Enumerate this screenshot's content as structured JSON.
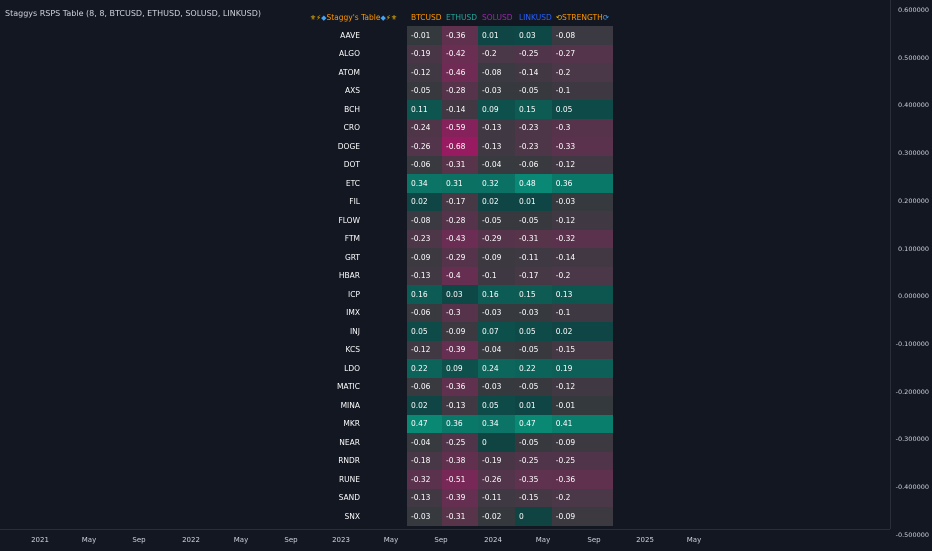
{
  "indicator": {
    "title": "Staggys RSPS Table (8, 8, BTCUSD, ETHUSD, SOLUSD, LINKUSD)"
  },
  "table": {
    "title": "Staggy's Table",
    "title_icons": [
      "fleur-de-lis-icon",
      "lightning-icon",
      "gem-icon"
    ],
    "headers": [
      {
        "label": "BTCUSD",
        "color": "#ff9800"
      },
      {
        "label": "ETHUSD",
        "color": "#26a69a"
      },
      {
        "label": "SOLUSD",
        "color": "#9c27b0"
      },
      {
        "label": "LINKUSD",
        "color": "#2962ff"
      },
      {
        "label": "STRENGTH",
        "color": "#ff9800"
      }
    ],
    "strength_icon": "cycle-arrows-icon",
    "rows": [
      {
        "asset": "AAVE",
        "values": [
          "-0.01",
          "-0.36",
          "0.01",
          "0.03",
          "-0.08"
        ]
      },
      {
        "asset": "ALGO",
        "values": [
          "-0.19",
          "-0.42",
          "-0.2",
          "-0.25",
          "-0.27"
        ]
      },
      {
        "asset": "ATOM",
        "values": [
          "-0.12",
          "-0.46",
          "-0.08",
          "-0.14",
          "-0.2"
        ]
      },
      {
        "asset": "AXS",
        "values": [
          "-0.05",
          "-0.28",
          "-0.03",
          "-0.05",
          "-0.1"
        ]
      },
      {
        "asset": "BCH",
        "values": [
          "0.11",
          "-0.14",
          "0.09",
          "0.15",
          "0.05"
        ]
      },
      {
        "asset": "CRO",
        "values": [
          "-0.24",
          "-0.59",
          "-0.13",
          "-0.23",
          "-0.3"
        ]
      },
      {
        "asset": "DOGE",
        "values": [
          "-0.26",
          "-0.68",
          "-0.13",
          "-0.23",
          "-0.33"
        ]
      },
      {
        "asset": "DOT",
        "values": [
          "-0.06",
          "-0.31",
          "-0.04",
          "-0.06",
          "-0.12"
        ]
      },
      {
        "asset": "ETC",
        "values": [
          "0.34",
          "0.31",
          "0.32",
          "0.48",
          "0.36"
        ]
      },
      {
        "asset": "FIL",
        "values": [
          "0.02",
          "-0.17",
          "0.02",
          "0.01",
          "-0.03"
        ]
      },
      {
        "asset": "FLOW",
        "values": [
          "-0.08",
          "-0.28",
          "-0.05",
          "-0.05",
          "-0.12"
        ]
      },
      {
        "asset": "FTM",
        "values": [
          "-0.23",
          "-0.43",
          "-0.29",
          "-0.31",
          "-0.32"
        ]
      },
      {
        "asset": "GRT",
        "values": [
          "-0.09",
          "-0.29",
          "-0.09",
          "-0.11",
          "-0.14"
        ]
      },
      {
        "asset": "HBAR",
        "values": [
          "-0.13",
          "-0.4",
          "-0.1",
          "-0.17",
          "-0.2"
        ]
      },
      {
        "asset": "ICP",
        "values": [
          "0.16",
          "0.03",
          "0.16",
          "0.15",
          "0.13"
        ]
      },
      {
        "asset": "IMX",
        "values": [
          "-0.06",
          "-0.3",
          "-0.03",
          "-0.03",
          "-0.1"
        ]
      },
      {
        "asset": "INJ",
        "values": [
          "0.05",
          "-0.09",
          "0.07",
          "0.05",
          "0.02"
        ]
      },
      {
        "asset": "KCS",
        "values": [
          "-0.12",
          "-0.39",
          "-0.04",
          "-0.05",
          "-0.15"
        ]
      },
      {
        "asset": "LDO",
        "values": [
          "0.22",
          "0.09",
          "0.24",
          "0.22",
          "0.19"
        ]
      },
      {
        "asset": "MATIC",
        "values": [
          "-0.06",
          "-0.36",
          "-0.03",
          "-0.05",
          "-0.12"
        ]
      },
      {
        "asset": "MINA",
        "values": [
          "0.02",
          "-0.13",
          "0.05",
          "0.01",
          "-0.01"
        ]
      },
      {
        "asset": "MKR",
        "values": [
          "0.47",
          "0.36",
          "0.34",
          "0.47",
          "0.41"
        ]
      },
      {
        "asset": "NEAR",
        "values": [
          "-0.04",
          "-0.25",
          "0",
          "-0.05",
          "-0.09"
        ]
      },
      {
        "asset": "RNDR",
        "values": [
          "-0.18",
          "-0.38",
          "-0.19",
          "-0.25",
          "-0.25"
        ]
      },
      {
        "asset": "RUNE",
        "values": [
          "-0.32",
          "-0.51",
          "-0.26",
          "-0.35",
          "-0.36"
        ]
      },
      {
        "asset": "SAND",
        "values": [
          "-0.13",
          "-0.39",
          "-0.11",
          "-0.15",
          "-0.2"
        ]
      },
      {
        "asset": "SNX",
        "values": [
          "-0.03",
          "-0.31",
          "-0.02",
          "0",
          "-0.09"
        ]
      }
    ]
  },
  "price_axis": [
    {
      "label": "0.600000",
      "value": 0.6
    },
    {
      "label": "0.500000",
      "value": 0.5
    },
    {
      "label": "0.400000",
      "value": 0.4
    },
    {
      "label": "0.300000",
      "value": 0.3
    },
    {
      "label": "0.200000",
      "value": 0.2
    },
    {
      "label": "0.100000",
      "value": 0.1
    },
    {
      "label": "0.000000",
      "value": 0.0
    },
    {
      "label": "-0.100000",
      "value": -0.1
    },
    {
      "label": "-0.200000",
      "value": -0.2
    },
    {
      "label": "-0.300000",
      "value": -0.3
    },
    {
      "label": "-0.400000",
      "value": -0.4
    },
    {
      "label": "-0.500000",
      "value": -0.5
    }
  ],
  "time_axis": [
    "2021",
    "May",
    "Sep",
    "2022",
    "May",
    "Sep",
    "2023",
    "May",
    "Sep",
    "2024",
    "May",
    "Sep",
    "2025",
    "May"
  ],
  "colors": {
    "background": "#131722",
    "positive": "#089981",
    "negative": "#b2275c",
    "neutral": "#787b86"
  }
}
